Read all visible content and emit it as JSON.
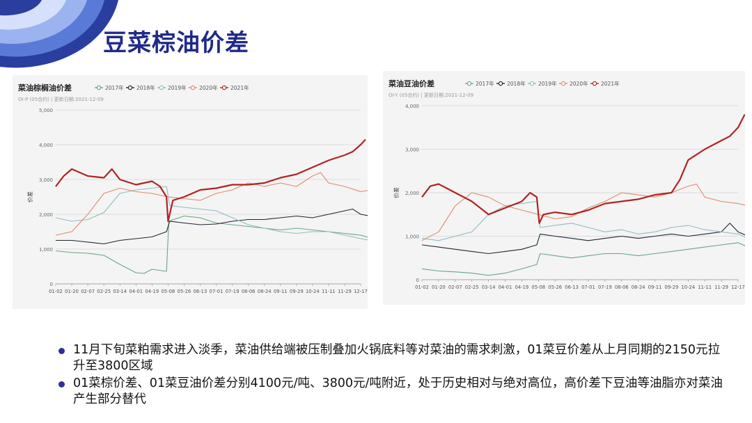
{
  "page": {
    "title": "豆菜棕油价差"
  },
  "colors": {
    "2017": "#6aa38a",
    "2018": "#1e2430",
    "2019": "#8fbcc0",
    "2020": "#e08a6a",
    "2021": "#b22222",
    "title": "#1f2a8a",
    "bullet": "#2e3192"
  },
  "bullets": [
    "11月下旬菜粕需求进入淡季，菜油供给端被压制叠加火锅底料等对菜油的需求刺激，01菜豆价差从上月同期的2150元拉升至3800区域",
    "01菜棕价差、01菜豆油价差分别4100元/吨、3800元/吨附近，处于历史相对与绝对高位，高价差下豆油等油脂亦对菜油产生部分替代"
  ],
  "chart_data": [
    {
      "type": "line",
      "title": "菜油棕榈油价差",
      "subtitle": "OI-P (05合约) | 更新日期:2021-12-09",
      "ylabel": "价差",
      "xlabel": "",
      "legend_position": "top",
      "grid": true,
      "ylim": [
        0,
        5000
      ],
      "yticks": [
        0,
        1000,
        2000,
        3000,
        4000,
        5000
      ],
      "ytick_labels": [
        "0",
        "1,000",
        "2,000",
        "3,000",
        "4,000",
        "5,000"
      ],
      "xtick_labels": [
        "01-02",
        "01-20",
        "02-07",
        "02-25",
        "03-14",
        "04-01",
        "04-19",
        "05-08",
        "05-26",
        "06-13",
        "07-01",
        "07-19",
        "08-06",
        "08-24",
        "09-11",
        "09-29",
        "10-24",
        "11-11",
        "11-29",
        "12-17"
      ],
      "series": [
        {
          "name": "2017年",
          "key": "2017",
          "points": [
            [
              0,
              950
            ],
            [
              1,
              900
            ],
            [
              2,
              880
            ],
            [
              3,
              820
            ],
            [
              4,
              560
            ],
            [
              5,
              320
            ],
            [
              5.5,
              300
            ],
            [
              6,
              420
            ],
            [
              6.9,
              360
            ],
            [
              7.05,
              1800
            ],
            [
              8,
              1950
            ],
            [
              9,
              1900
            ],
            [
              10,
              1750
            ],
            [
              11,
              1700
            ],
            [
              12,
              1650
            ],
            [
              13,
              1600
            ],
            [
              14,
              1550
            ],
            [
              15,
              1600
            ],
            [
              16,
              1550
            ],
            [
              17,
              1500
            ],
            [
              18,
              1450
            ],
            [
              19,
              1400
            ],
            [
              19.6,
              1320
            ]
          ]
        },
        {
          "name": "2018年",
          "key": "2018",
          "points": [
            [
              0,
              1250
            ],
            [
              1,
              1250
            ],
            [
              2,
              1200
            ],
            [
              3,
              1150
            ],
            [
              4,
              1250
            ],
            [
              5,
              1300
            ],
            [
              6,
              1350
            ],
            [
              6.9,
              1500
            ],
            [
              7.1,
              1800
            ],
            [
              8,
              1750
            ],
            [
              9,
              1700
            ],
            [
              10,
              1720
            ],
            [
              11,
              1800
            ],
            [
              12,
              1850
            ],
            [
              13,
              1850
            ],
            [
              14,
              1900
            ],
            [
              15,
              1950
            ],
            [
              16,
              1900
            ],
            [
              17,
              2000
            ],
            [
              18,
              2100
            ],
            [
              18.5,
              2150
            ],
            [
              19,
              2000
            ],
            [
              19.6,
              1950
            ]
          ]
        },
        {
          "name": "2019年",
          "key": "2019",
          "points": [
            [
              0,
              1900
            ],
            [
              1,
              1800
            ],
            [
              2,
              1850
            ],
            [
              3,
              2050
            ],
            [
              4,
              2600
            ],
            [
              5,
              2700
            ],
            [
              6,
              2750
            ],
            [
              6.9,
              2800
            ],
            [
              7.1,
              2250
            ],
            [
              8,
              2200
            ],
            [
              9,
              2150
            ],
            [
              10,
              2100
            ],
            [
              11,
              1900
            ],
            [
              12,
              1700
            ],
            [
              13,
              1600
            ],
            [
              14,
              1500
            ],
            [
              15,
              1450
            ],
            [
              16,
              1500
            ],
            [
              17,
              1500
            ],
            [
              18,
              1400
            ],
            [
              19,
              1300
            ],
            [
              19.6,
              1250
            ]
          ]
        },
        {
          "name": "2020年",
          "key": "2020",
          "points": [
            [
              0,
              1400
            ],
            [
              1,
              1500
            ],
            [
              2,
              2000
            ],
            [
              3,
              2600
            ],
            [
              4,
              2750
            ],
            [
              5,
              2650
            ],
            [
              6,
              2600
            ],
            [
              7,
              2500
            ],
            [
              8,
              2450
            ],
            [
              9,
              2400
            ],
            [
              10,
              2600
            ],
            [
              11,
              2700
            ],
            [
              12,
              2900
            ],
            [
              13,
              2800
            ],
            [
              14,
              2900
            ],
            [
              15,
              2800
            ],
            [
              16,
              3100
            ],
            [
              16.5,
              3200
            ],
            [
              17,
              2900
            ],
            [
              18,
              2800
            ],
            [
              19,
              2650
            ],
            [
              19.6,
              2700
            ]
          ]
        },
        {
          "name": "2021年",
          "key": "2021",
          "points": [
            [
              0,
              2800
            ],
            [
              0.5,
              3100
            ],
            [
              1,
              3300
            ],
            [
              2,
              3100
            ],
            [
              3,
              3050
            ],
            [
              3.5,
              3300
            ],
            [
              4,
              3000
            ],
            [
              5,
              2850
            ],
            [
              6,
              2950
            ],
            [
              6.5,
              2800
            ],
            [
              6.9,
              2500
            ],
            [
              7.0,
              1800
            ],
            [
              7.3,
              2400
            ],
            [
              8,
              2500
            ],
            [
              9,
              2700
            ],
            [
              10,
              2750
            ],
            [
              11,
              2850
            ],
            [
              12,
              2850
            ],
            [
              13,
              2900
            ],
            [
              14,
              3050
            ],
            [
              15,
              3150
            ],
            [
              16,
              3350
            ],
            [
              17,
              3550
            ],
            [
              18,
              3700
            ],
            [
              18.5,
              3800
            ],
            [
              19,
              4000
            ],
            [
              19.3,
              4150
            ]
          ]
        }
      ]
    },
    {
      "type": "line",
      "title": "菜油豆油价差",
      "subtitle": "OI-Y (05合约) | 更新日期:2021-12-09",
      "ylabel": "价差",
      "xlabel": "",
      "legend_position": "top",
      "grid": true,
      "ylim": [
        0,
        4000
      ],
      "yticks": [
        0,
        1000,
        2000,
        3000,
        4000
      ],
      "ytick_labels": [
        "0",
        "1,000",
        "2,000",
        "3,000",
        "4,000"
      ],
      "xtick_labels": [
        "01-02",
        "01-20",
        "02-07",
        "02-25",
        "03-14",
        "04-01",
        "04-19",
        "05-08",
        "05-26",
        "06-13",
        "07-01",
        "07-19",
        "08-06",
        "08-24",
        "09-11",
        "09-29",
        "10-24",
        "11-11",
        "11-29",
        "12-17"
      ],
      "series": [
        {
          "name": "2017年",
          "key": "2017",
          "points": [
            [
              0,
              250
            ],
            [
              1,
              200
            ],
            [
              2,
              180
            ],
            [
              3,
              150
            ],
            [
              4,
              100
            ],
            [
              5,
              150
            ],
            [
              6,
              250
            ],
            [
              6.9,
              350
            ],
            [
              7.1,
              600
            ],
            [
              8,
              550
            ],
            [
              9,
              500
            ],
            [
              10,
              550
            ],
            [
              11,
              600
            ],
            [
              12,
              600
            ],
            [
              13,
              550
            ],
            [
              14,
              600
            ],
            [
              15,
              650
            ],
            [
              16,
              700
            ],
            [
              17,
              750
            ],
            [
              18,
              800
            ],
            [
              19,
              850
            ],
            [
              19.6,
              750
            ]
          ]
        },
        {
          "name": "2018年",
          "key": "2018",
          "points": [
            [
              0,
              800
            ],
            [
              1,
              750
            ],
            [
              2,
              700
            ],
            [
              3,
              650
            ],
            [
              4,
              600
            ],
            [
              5,
              650
            ],
            [
              6,
              700
            ],
            [
              6.9,
              800
            ],
            [
              7.1,
              1050
            ],
            [
              8,
              1000
            ],
            [
              9,
              950
            ],
            [
              10,
              900
            ],
            [
              11,
              950
            ],
            [
              12,
              1000
            ],
            [
              13,
              950
            ],
            [
              14,
              1000
            ],
            [
              15,
              1050
            ],
            [
              16,
              1000
            ],
            [
              17,
              1050
            ],
            [
              18,
              1100
            ],
            [
              18.5,
              1300
            ],
            [
              19,
              1100
            ],
            [
              19.6,
              1000
            ]
          ]
        },
        {
          "name": "2019年",
          "key": "2019",
          "points": [
            [
              0,
              950
            ],
            [
              1,
              900
            ],
            [
              2,
              1000
            ],
            [
              3,
              1100
            ],
            [
              4,
              1500
            ],
            [
              5,
              1700
            ],
            [
              6,
              1750
            ],
            [
              6.9,
              1800
            ],
            [
              7.1,
              1200
            ],
            [
              8,
              1250
            ],
            [
              9,
              1300
            ],
            [
              10,
              1200
            ],
            [
              11,
              1100
            ],
            [
              12,
              1150
            ],
            [
              13,
              1050
            ],
            [
              14,
              1100
            ],
            [
              15,
              1200
            ],
            [
              16,
              1250
            ],
            [
              17,
              1150
            ],
            [
              18,
              1100
            ],
            [
              19,
              1050
            ],
            [
              19.6,
              950
            ]
          ]
        },
        {
          "name": "2020年",
          "key": "2020",
          "points": [
            [
              0,
              900
            ],
            [
              1,
              1100
            ],
            [
              2,
              1700
            ],
            [
              3,
              2000
            ],
            [
              4,
              1900
            ],
            [
              5,
              1700
            ],
            [
              6,
              1600
            ],
            [
              7,
              1500
            ],
            [
              8,
              1400
            ],
            [
              9,
              1450
            ],
            [
              10,
              1650
            ],
            [
              11,
              1800
            ],
            [
              12,
              2000
            ],
            [
              13,
              1950
            ],
            [
              14,
              1900
            ],
            [
              15,
              2000
            ],
            [
              16,
              2150
            ],
            [
              16.5,
              2200
            ],
            [
              17,
              1900
            ],
            [
              18,
              1800
            ],
            [
              19,
              1750
            ],
            [
              19.6,
              1700
            ]
          ]
        },
        {
          "name": "2021年",
          "key": "2021",
          "points": [
            [
              0,
              1900
            ],
            [
              0.5,
              2150
            ],
            [
              1,
              2200
            ],
            [
              2,
              2000
            ],
            [
              3,
              1800
            ],
            [
              4,
              1500
            ],
            [
              5,
              1650
            ],
            [
              6,
              1800
            ],
            [
              6.5,
              2000
            ],
            [
              6.9,
              1900
            ],
            [
              7.05,
              1300
            ],
            [
              7.3,
              1500
            ],
            [
              8,
              1550
            ],
            [
              9,
              1500
            ],
            [
              10,
              1600
            ],
            [
              11,
              1750
            ],
            [
              12,
              1800
            ],
            [
              13,
              1850
            ],
            [
              14,
              1950
            ],
            [
              15,
              2000
            ],
            [
              15.5,
              2300
            ],
            [
              16,
              2750
            ],
            [
              17,
              3000
            ],
            [
              18,
              3200
            ],
            [
              18.5,
              3300
            ],
            [
              19,
              3500
            ],
            [
              19.4,
              3800
            ]
          ]
        }
      ]
    }
  ]
}
